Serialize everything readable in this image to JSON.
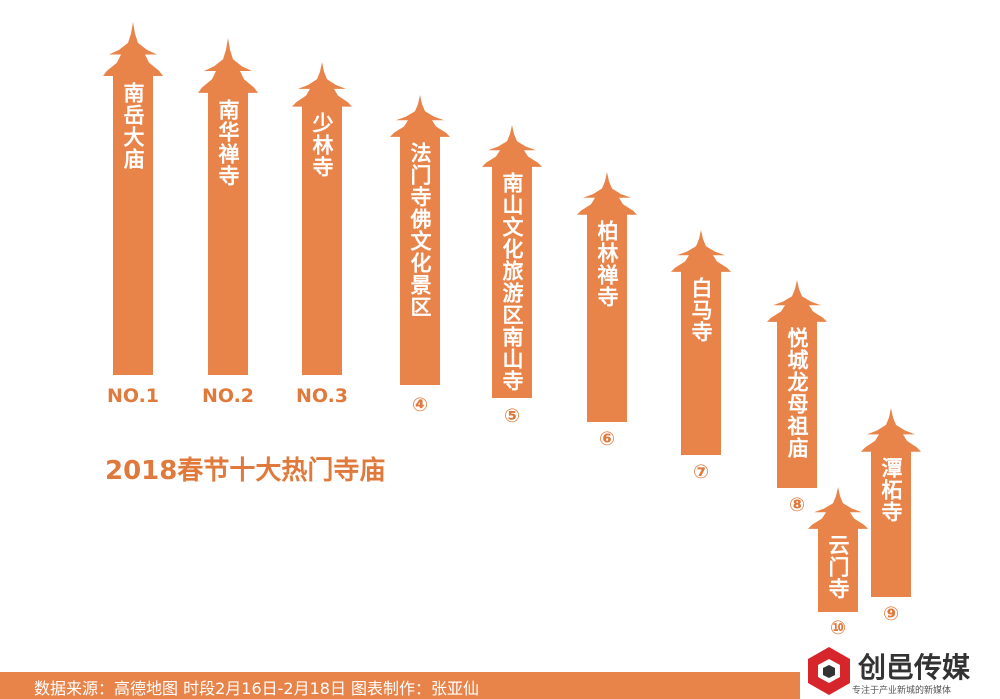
{
  "title": "2018春节十大热门寺庙",
  "temples": [
    {
      "name": "南岳大庙",
      "rank": "NO.1"
    },
    {
      "name": "南华禅寺",
      "rank": "NO.2"
    },
    {
      "name": "少林寺",
      "rank": "NO.3"
    },
    {
      "name": "法门寺佛文化景区",
      "rank": "④"
    },
    {
      "name": "南山文化旅游区南山寺",
      "rank": "⑤"
    },
    {
      "name": "柏林禅寺",
      "rank": "⑥"
    },
    {
      "name": "白马寺",
      "rank": "⑦"
    },
    {
      "name": "悦城龙母祖庙",
      "rank": "⑧"
    },
    {
      "name": "潭柘寺",
      "rank": "⑨"
    },
    {
      "name": "云门寺",
      "rank": "⑩"
    }
  ],
  "footer": {
    "source": "数据来源：高德地图 时段2月16日-2月18日  图表制作：张亚仙"
  },
  "logo": {
    "name": "创邑传媒",
    "tagline": "专注于产业新城的新媒体"
  }
}
